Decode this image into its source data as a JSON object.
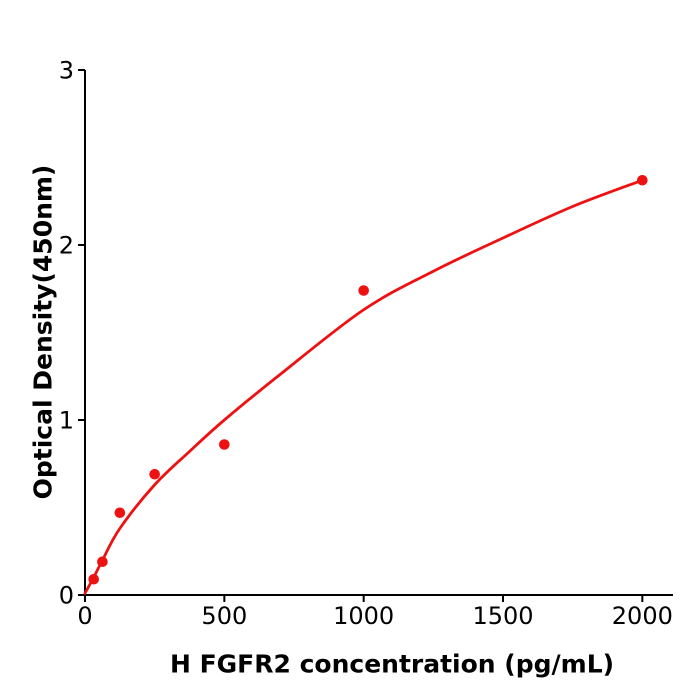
{
  "figure": {
    "background": "#ffffff"
  },
  "chart_data": {
    "type": "scatter",
    "subtype": "standard-curve-with-fit",
    "title": "",
    "xlabel": "H  FGFR2 concentration (pg/mL)",
    "ylabel": "Optical Density(450nm)",
    "xlim": [
      0,
      2110
    ],
    "ylim": [
      0,
      3
    ],
    "x_ticks": [
      0,
      500,
      1000,
      1500,
      2000
    ],
    "y_ticks": [
      0,
      1,
      2,
      3
    ],
    "grid": false,
    "legend": "none",
    "marker_color": "#ee1111",
    "line_color": "#ee1111",
    "axis_color": "#000000",
    "points": {
      "x": [
        31.25,
        62.5,
        125,
        250,
        500,
        1000,
        2000
      ],
      "y": [
        0.09,
        0.19,
        0.47,
        0.69,
        0.86,
        1.74,
        2.37
      ]
    },
    "fit_curve": {
      "x": [
        0,
        31,
        63,
        125,
        250,
        375,
        500,
        700,
        1000,
        1250,
        1500,
        1750,
        2000
      ],
      "y": [
        0.01,
        0.1,
        0.2,
        0.38,
        0.63,
        0.82,
        1.0,
        1.26,
        1.63,
        1.85,
        2.04,
        2.22,
        2.37
      ]
    }
  }
}
